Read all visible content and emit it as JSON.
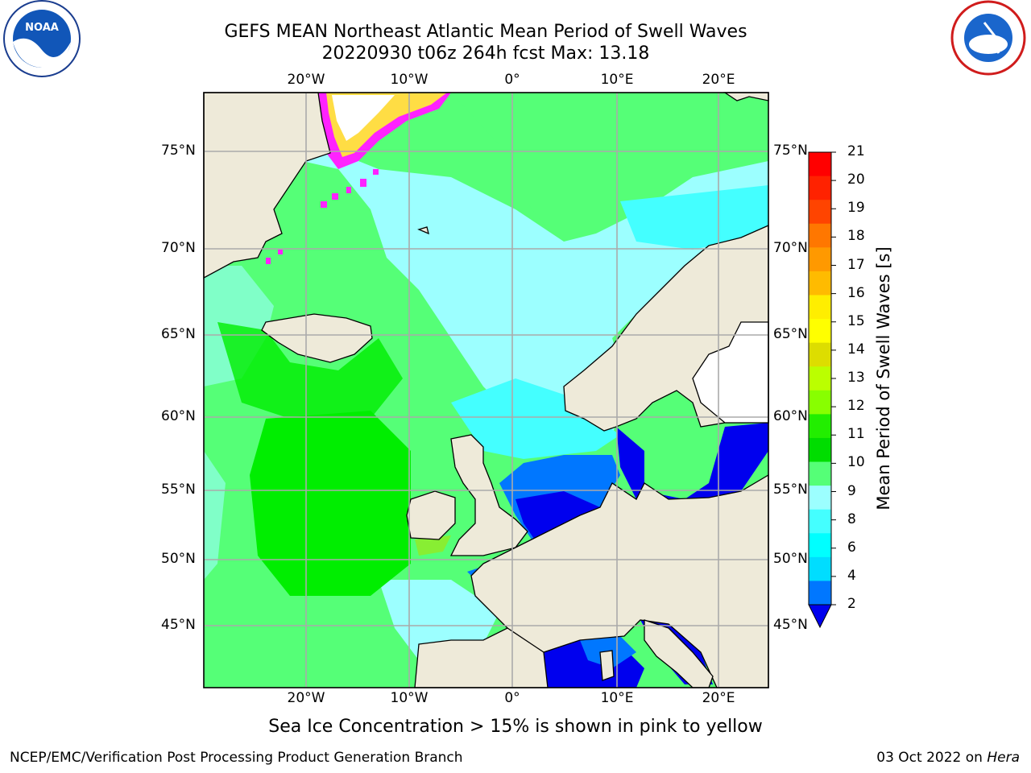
{
  "title": {
    "line1": "GEFS MEAN Northeast Atlantic Mean Period of Swell Waves",
    "line2": "20220930 t06z 264h fcst   Max: 13.18"
  },
  "map": {
    "lon_labels": [
      "20°W",
      "10°W",
      "0°",
      "10°E",
      "20°E"
    ],
    "lat_labels": [
      "75°N",
      "70°N",
      "65°N",
      "60°N",
      "55°N",
      "50°N",
      "45°N"
    ],
    "colors": {
      "ocean_low": "#0000ee",
      "ocean_deep_blue": "#0077ff",
      "cyan": "#44ffff",
      "light_cyan": "#9cffff",
      "light_green": "#55ff77",
      "green": "#00ee00",
      "yellow_green": "#88ee33",
      "land": "#eeead9",
      "ice_pink": "#ff22ff",
      "ice_yellow": "#ffdd44",
      "grid": "#aaaaaa"
    }
  },
  "colorbar": {
    "label": "Mean Period of Swell Waves [s]",
    "ticks": [
      "21",
      "20",
      "19",
      "18",
      "17",
      "16",
      "15",
      "14",
      "13",
      "12",
      "11",
      "10",
      "9",
      "8",
      "6",
      "4",
      "2"
    ],
    "colors_top_to_bottom": [
      "#ff0000",
      "#ff2200",
      "#ff4400",
      "#ff7700",
      "#ff9900",
      "#ffbb00",
      "#ffee00",
      "#ffff00",
      "#dddd00",
      "#bbff00",
      "#88ff00",
      "#22ee00",
      "#00dd00",
      "#55ff77",
      "#9cffff",
      "#44ffff",
      "#00ffff",
      "#00ddff",
      "#0077ff"
    ],
    "extend_color": "#0000ee"
  },
  "notes": {
    "ice": "Sea Ice Concentration > 15% is shown in pink to yellow",
    "footer_left": "NCEP/EMC/Verification Post Processing Product Generation Branch",
    "footer_date": "03 Oct 2022 on ",
    "footer_machine": "Hera"
  }
}
